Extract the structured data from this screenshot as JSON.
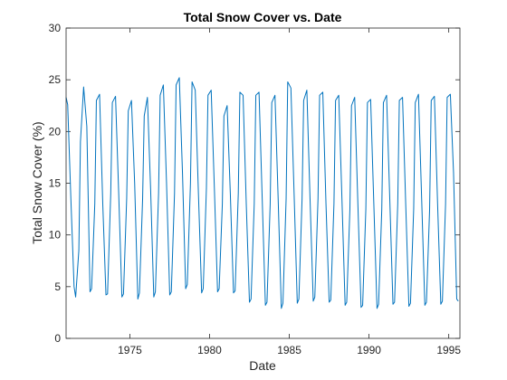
{
  "chart_data": {
    "type": "line",
    "title": "Total Snow Cover vs. Date",
    "xlabel": "Date",
    "ylabel": "Total Snow Cover (%)",
    "xlim": [
      1971.0,
      1995.7
    ],
    "ylim": [
      0,
      30
    ],
    "xticks": [
      1975,
      1980,
      1985,
      1990,
      1995
    ],
    "yticks": [
      0,
      5,
      10,
      15,
      20,
      25,
      30
    ],
    "grid": false,
    "legend": "none",
    "series_color": "#0072BD",
    "series": [
      {
        "x": [
          1971.0,
          1971.1,
          1971.3,
          1971.5,
          1971.6,
          1971.8,
          1971.9,
          1972.1,
          1972.3,
          1972.5,
          1972.6,
          1972.8,
          1972.9,
          1973.1,
          1973.3,
          1973.5,
          1973.6,
          1973.8,
          1973.9,
          1974.1,
          1974.3,
          1974.5,
          1974.6,
          1974.8,
          1974.9,
          1975.1,
          1975.3,
          1975.5,
          1975.6,
          1975.8,
          1975.9,
          1976.1,
          1976.3,
          1976.5,
          1976.6,
          1976.8,
          1976.9,
          1977.1,
          1977.3,
          1977.5,
          1977.6,
          1977.8,
          1977.9,
          1978.1,
          1978.3,
          1978.5,
          1978.6,
          1978.8,
          1978.9,
          1979.1,
          1979.3,
          1979.5,
          1979.6,
          1979.8,
          1979.9,
          1980.1,
          1980.3,
          1980.5,
          1980.6,
          1980.8,
          1980.9,
          1981.1,
          1981.3,
          1981.5,
          1981.6,
          1981.8,
          1981.9,
          1982.1,
          1982.3,
          1982.5,
          1982.6,
          1982.8,
          1982.9,
          1983.1,
          1983.3,
          1983.5,
          1983.6,
          1983.8,
          1983.9,
          1984.1,
          1984.3,
          1984.5,
          1984.6,
          1984.8,
          1984.9,
          1985.1,
          1985.3,
          1985.5,
          1985.6,
          1985.8,
          1985.9,
          1986.1,
          1986.3,
          1986.5,
          1986.6,
          1986.8,
          1986.9,
          1987.1,
          1987.3,
          1987.5,
          1987.6,
          1987.8,
          1987.9,
          1988.1,
          1988.3,
          1988.5,
          1988.6,
          1988.8,
          1988.9,
          1989.1,
          1989.3,
          1989.5,
          1989.6,
          1989.8,
          1989.9,
          1990.1,
          1990.3,
          1990.5,
          1990.6,
          1990.8,
          1990.9,
          1991.1,
          1991.3,
          1991.5,
          1991.6,
          1991.8,
          1991.9,
          1992.1,
          1992.3,
          1992.5,
          1992.6,
          1992.8,
          1992.9,
          1993.1,
          1993.3,
          1993.5,
          1993.6,
          1993.8,
          1993.9,
          1994.1,
          1994.3,
          1994.5,
          1994.6,
          1994.8,
          1994.9,
          1995.1,
          1995.3,
          1995.5,
          1995.6
        ],
        "values": [
          23.3,
          22.6,
          13.5,
          5.0,
          4.0,
          8.5,
          19.0,
          24.3,
          20.5,
          4.5,
          4.8,
          13.0,
          23.0,
          23.6,
          13.0,
          4.2,
          4.3,
          14.0,
          22.8,
          23.4,
          14.0,
          4.0,
          4.3,
          13.5,
          22.0,
          23.0,
          15.0,
          3.8,
          4.4,
          13.5,
          21.5,
          23.3,
          14.5,
          4.0,
          4.5,
          14.0,
          23.5,
          24.5,
          15.0,
          4.2,
          4.5,
          14.0,
          24.5,
          25.2,
          16.0,
          4.8,
          5.2,
          15.0,
          24.8,
          24.0,
          14.0,
          4.4,
          4.8,
          14.5,
          23.5,
          24.0,
          14.5,
          4.5,
          4.8,
          13.0,
          21.5,
          22.5,
          14.0,
          4.4,
          4.6,
          14.0,
          23.8,
          23.5,
          13.0,
          3.5,
          3.8,
          13.0,
          23.5,
          23.8,
          13.5,
          3.2,
          3.5,
          13.0,
          22.8,
          23.5,
          13.5,
          2.9,
          3.4,
          13.5,
          24.8,
          24.2,
          14.0,
          3.4,
          3.8,
          13.5,
          23.0,
          24.0,
          13.5,
          3.6,
          4.0,
          13.5,
          23.5,
          23.8,
          13.0,
          3.5,
          3.7,
          13.0,
          23.0,
          23.5,
          13.5,
          3.2,
          3.5,
          12.5,
          22.5,
          23.3,
          13.0,
          3.0,
          3.2,
          12.5,
          22.8,
          23.1,
          13.0,
          2.9,
          3.3,
          12.5,
          22.8,
          23.5,
          13.5,
          3.3,
          3.5,
          13.0,
          23.0,
          23.3,
          13.0,
          3.1,
          3.4,
          12.5,
          22.8,
          23.6,
          13.5,
          3.2,
          3.5,
          12.5,
          23.0,
          23.4,
          13.0,
          3.3,
          3.6,
          13.0,
          23.3,
          23.6,
          16.0,
          3.8,
          3.6
        ]
      }
    ]
  }
}
